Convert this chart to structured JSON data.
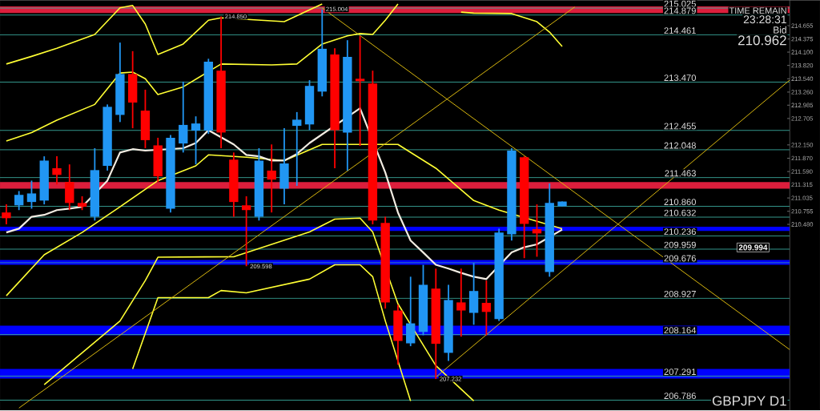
{
  "chart_data": {
    "type": "candlestick",
    "categories": [
      null,
      null,
      null,
      null,
      null,
      null,
      null,
      null,
      null,
      null,
      null,
      null,
      null,
      null,
      null,
      null,
      null,
      null,
      null,
      null,
      null,
      null,
      null,
      null,
      null,
      null,
      null,
      null,
      null,
      null,
      null,
      null,
      null,
      null,
      null,
      null,
      null,
      null,
      null,
      null,
      null,
      null,
      null,
      null,
      null,
      null,
      null,
      null,
      null,
      null,
      null,
      null,
      null,
      null,
      null,
      null,
      null,
      null,
      null,
      null,
      null,
      null,
      null
    ],
    "ohlc": [
      [
        210.73,
        210.9,
        210.48,
        210.61
      ],
      [
        210.88,
        211.18,
        210.78,
        211.1
      ],
      [
        210.95,
        211.4,
        210.81,
        211.13
      ],
      [
        210.98,
        211.91,
        210.9,
        211.82
      ],
      [
        211.66,
        211.91,
        211.32,
        211.52
      ],
      [
        211.37,
        211.74,
        210.78,
        210.93
      ],
      [
        210.93,
        211.07,
        210.78,
        210.85
      ],
      [
        210.64,
        212.08,
        210.56,
        211.62
      ],
      [
        211.71,
        213.0,
        211.61,
        212.95
      ],
      [
        212.78,
        214.3,
        212.63,
        213.64
      ],
      [
        213.64,
        214.12,
        212.5,
        213.04
      ],
      [
        212.87,
        213.31,
        212.08,
        212.25
      ],
      [
        212.14,
        212.3,
        211.37,
        211.49
      ],
      [
        210.81,
        212.36,
        210.73,
        212.3
      ],
      [
        212.18,
        213.48,
        211.99,
        212.57
      ],
      [
        212.45,
        212.75,
        211.74,
        212.6
      ],
      [
        212.45,
        213.96,
        212.38,
        213.9
      ],
      [
        213.71,
        214.85,
        212.08,
        212.41
      ],
      [
        211.84,
        211.99,
        210.64,
        210.95
      ],
      [
        210.88,
        211.07,
        209.6,
        210.78
      ],
      [
        210.64,
        212.08,
        210.56,
        211.82
      ],
      [
        211.61,
        212.16,
        210.73,
        211.42
      ],
      [
        211.23,
        212.5,
        210.9,
        211.76
      ],
      [
        212.55,
        212.84,
        211.29,
        212.68
      ],
      [
        212.58,
        213.51,
        212.46,
        213.39
      ],
      [
        213.27,
        215.0,
        213.17,
        214.17
      ],
      [
        214.05,
        214.18,
        211.66,
        212.46
      ],
      [
        212.41,
        214.35,
        211.61,
        214.0
      ],
      [
        213.54,
        214.44,
        212.13,
        213.49
      ],
      [
        213.44,
        213.71,
        210.48,
        210.56
      ],
      [
        210.51,
        210.64,
        208.71,
        208.84
      ],
      [
        208.67,
        208.79,
        207.53,
        208.03
      ],
      [
        207.98,
        209.38,
        207.92,
        208.4
      ],
      [
        208.22,
        209.63,
        208.15,
        209.21
      ],
      [
        209.13,
        209.55,
        207.23,
        207.97
      ],
      [
        207.78,
        209.21,
        207.61,
        208.89
      ],
      [
        208.84,
        209.55,
        208.12,
        208.67
      ],
      [
        208.62,
        209.67,
        208.37,
        209.08
      ],
      [
        208.83,
        209.3,
        208.15,
        208.64
      ],
      [
        208.49,
        210.39,
        208.45,
        210.31
      ],
      [
        210.27,
        212.08,
        210.14,
        212.03
      ],
      [
        211.89,
        211.91,
        209.77,
        210.49
      ],
      [
        210.38,
        210.9,
        209.8,
        210.29
      ],
      [
        209.48,
        211.34,
        209.38,
        210.93
      ],
      [
        210.86,
        210.96,
        210.86,
        210.96
      ],
      null,
      null,
      null,
      null,
      null,
      null,
      null,
      null,
      null,
      null,
      null,
      null,
      null,
      null,
      null,
      null,
      null,
      null
    ],
    "colors": [
      "#ff0000",
      "#2196f3",
      "#2196f3",
      "#2196f3",
      "#ff0000",
      "#ff0000",
      "#ff0000",
      "#2196f3",
      "#2196f3",
      "#2196f3",
      "#ff0000",
      "#ff0000",
      "#ff0000",
      "#2196f3",
      "#2196f3",
      "#2196f3",
      "#2196f3",
      "#ff0000",
      "#ff0000",
      "#ff0000",
      "#2196f3",
      "#ff0000",
      "#2196f3",
      "#2196f3",
      "#2196f3",
      "#2196f3",
      "#ff0000",
      "#2196f3",
      "#ff0000",
      "#ff0000",
      "#ff0000",
      "#ff0000",
      "#2196f3",
      "#2196f3",
      "#ff0000",
      "#2196f3",
      "#ff0000",
      "#2196f3",
      "#ff0000",
      "#2196f3",
      "#2196f3",
      "#ff0000",
      "#ff0000",
      "#2196f3",
      "#2196f3",
      null,
      null,
      null,
      null,
      null,
      null,
      null,
      null,
      null,
      null,
      null,
      null,
      null,
      null,
      null,
      null,
      null,
      null
    ],
    "ylim": [
      206.57,
      215.19
    ],
    "yticks": [
      214.655,
      214.375,
      {
        "value": 214.1,
        "label": "214.100"
      },
      {
        "value": 213.82,
        "label": "213.820"
      },
      {
        "value": 213.54,
        "label": "213.540"
      },
      {
        "value": 213.26,
        "label": "213.260"
      },
      212.985,
      212.705,
      {
        "value": 212.15,
        "label": "212.150"
      },
      {
        "value": 211.87,
        "label": "211.870"
      },
      {
        "value": 211.59,
        "label": "211.590"
      },
      211.315,
      211.035,
      210.755,
      {
        "value": 210.48,
        "label": "210.480"
      }
    ],
    "tick_labels": "y",
    "series": [
      {
        "type": "line",
        "color": "#ffff33",
        "values": [
          213.85,
          null,
          214.01,
          null,
          214.18,
          null,
          null,
          214.47,
          null,
          215.03,
          215.08,
          214.69,
          214.05,
          null,
          214.27,
          null,
          214.77,
          214.82,
          null,
          null,
          null,
          null,
          214.74,
          null,
          214.99,
          215.11,
          null,
          null,
          null,
          null,
          null,
          null,
          null,
          null,
          null,
          null,
          null,
          null,
          null,
          null,
          null,
          null,
          null,
          null,
          null,
          null,
          null,
          null,
          null,
          null,
          null,
          null,
          null,
          null,
          null,
          null,
          null,
          null,
          null,
          null,
          null,
          null,
          null
        ]
      },
      {
        "type": "line",
        "color": "#ffff33",
        "values": [
          212.23,
          null,
          212.41,
          null,
          212.67,
          null,
          null,
          213.0,
          null,
          213.66,
          213.68,
          213.54,
          213.21,
          null,
          213.37,
          null,
          null,
          213.85,
          null,
          null,
          null,
          213.83,
          null,
          213.85,
          null,
          214.27,
          null,
          214.44,
          214.49,
          214.47,
          214.77,
          215.11,
          null,
          null,
          null,
          null,
          null,
          null,
          null,
          null,
          null,
          null,
          null,
          null,
          null,
          null,
          null,
          null,
          null,
          null,
          null,
          null,
          null,
          null,
          null,
          null,
          null,
          null,
          null,
          null,
          null,
          null,
          null
        ]
      },
      {
        "type": "line",
        "color": "#ffff33",
        "values": [
          null,
          null,
          null,
          null,
          null,
          null,
          null,
          null,
          null,
          null,
          null,
          null,
          null,
          null,
          null,
          null,
          null,
          null,
          null,
          null,
          null,
          null,
          null,
          null,
          null,
          null,
          null,
          null,
          null,
          null,
          null,
          null,
          null,
          null,
          null,
          null,
          214.94,
          214.92,
          null,
          null,
          214.91,
          null,
          214.74,
          214.52,
          214.22,
          null,
          null,
          null,
          null,
          null,
          null,
          null,
          null,
          null,
          null,
          null,
          null,
          null,
          null,
          null,
          null,
          null,
          null
        ]
      },
      {
        "type": "line",
        "color": "#ffff33",
        "values": [
          208.98,
          null,
          null,
          209.84,
          null,
          null,
          210.31,
          null,
          null,
          210.85,
          null,
          null,
          211.4,
          null,
          null,
          211.71,
          211.94,
          null,
          null,
          211.89,
          null,
          null,
          211.82,
          null,
          null,
          212.16,
          null,
          null,
          null,
          null,
          null,
          212.16,
          null,
          null,
          211.66,
          null,
          null,
          210.98,
          null,
          210.78,
          null,
          null,
          null,
          null,
          210.39,
          null,
          null,
          null,
          null,
          null,
          null,
          null,
          null,
          null,
          null,
          null,
          null,
          null,
          null,
          null,
          null,
          null,
          null
        ]
      },
      {
        "type": "line",
        "color": "#ffff33",
        "values": [
          null,
          null,
          null,
          207.11,
          null,
          null,
          207.78,
          null,
          null,
          208.45,
          null,
          209.3,
          209.79,
          null,
          null,
          null,
          null,
          null,
          209.8,
          null,
          null,
          null,
          null,
          null,
          210.32,
          null,
          210.59,
          null,
          210.61,
          210.32,
          null,
          208.81,
          null,
          null,
          207.51,
          null,
          null,
          206.77,
          null,
          null,
          null,
          null,
          null,
          null,
          null,
          null,
          null,
          null,
          null,
          null,
          null,
          null,
          null,
          null,
          null,
          null,
          null,
          null,
          null,
          null,
          null,
          null,
          null
        ]
      },
      {
        "type": "line",
        "color": "#ffff33",
        "values": [
          null,
          null,
          null,
          null,
          null,
          null,
          null,
          null,
          null,
          null,
          207.44,
          null,
          208.94,
          null,
          null,
          null,
          208.94,
          209.09,
          null,
          209.04,
          null,
          null,
          null,
          null,
          209.33,
          null,
          209.63,
          null,
          209.63,
          209.38,
          208.45,
          null,
          206.77,
          null,
          null,
          null,
          null,
          null,
          null,
          null,
          null,
          null,
          null,
          null,
          null,
          null,
          null,
          null,
          null,
          null,
          null,
          null,
          null,
          null,
          null,
          null,
          null,
          null,
          null,
          null,
          null,
          null,
          null
        ]
      },
      {
        "type": "line",
        "color": "#f2ece2",
        "values": [
          210.31,
          210.39,
          210.64,
          210.68,
          210.78,
          210.81,
          210.85,
          null,
          211.4,
          211.99,
          212.06,
          212.03,
          null,
          null,
          212.08,
          212.19,
          212.46,
          null,
          212.16,
          211.94,
          211.91,
          211.82,
          211.82,
          211.96,
          212.19,
          null,
          null,
          null,
          212.92,
          null,
          211.57,
          210.73,
          210.14,
          209.89,
          209.63,
          209.55,
          209.46,
          209.38,
          209.33,
          null,
          209.89,
          210.0,
          210.06,
          null,
          210.37,
          null,
          null,
          null,
          null,
          null,
          null,
          null,
          null,
          null,
          null,
          null,
          null,
          null,
          null,
          null,
          null,
          null,
          null
        ]
      },
      {
        "type": "line",
        "color": "#d9b80f",
        "values": [
          null,
          null,
          null,
          null,
          null,
          null,
          null,
          null,
          null,
          null,
          null,
          null,
          null,
          null,
          null,
          null,
          null,
          null,
          null,
          null,
          null,
          null,
          null,
          null,
          null,
          215.03,
          null,
          null,
          null,
          null,
          null,
          null,
          null,
          null,
          null,
          null,
          null,
          null,
          null,
          null,
          null,
          null,
          null,
          null,
          null,
          null,
          null,
          null,
          null,
          null,
          null,
          null,
          null,
          null,
          null,
          null,
          null,
          null,
          null,
          null,
          null,
          null,
          207.85
        ]
      },
      {
        "type": "line",
        "color": "#d9b80f",
        "values": [
          null,
          null,
          null,
          null,
          null,
          null,
          null,
          null,
          null,
          null,
          null,
          null,
          null,
          null,
          null,
          null,
          null,
          null,
          null,
          null,
          null,
          null,
          null,
          null,
          null,
          null,
          null,
          null,
          null,
          null,
          null,
          null,
          null,
          null,
          207.27,
          null,
          null,
          null,
          null,
          null,
          null,
          null,
          null,
          null,
          null,
          null,
          null,
          null,
          null,
          null,
          null,
          null,
          null,
          null,
          null,
          null,
          null,
          null,
          null,
          null,
          null,
          null,
          213.51
        ]
      },
      {
        "type": "line",
        "color": "#d9b80f",
        "values": [
          null,
          206.62,
          null,
          null,
          null,
          null,
          null,
          null,
          null,
          null,
          null,
          null,
          null,
          null,
          null,
          null,
          null,
          null,
          null,
          null,
          null,
          null,
          null,
          null,
          null,
          null,
          null,
          null,
          null,
          null,
          null,
          null,
          null,
          null,
          null,
          null,
          null,
          null,
          null,
          null,
          null,
          null,
          null,
          null,
          null,
          215.05,
          null,
          null,
          null,
          null,
          null,
          null,
          null,
          null,
          null,
          null,
          null,
          null,
          null,
          null,
          null,
          null,
          null
        ]
      }
    ],
    "bands": [
      {
        "axis": "y",
        "from": 214.92,
        "to": 215.06,
        "color": "#dc1e3c"
      },
      {
        "axis": "y",
        "from": 211.23,
        "to": 211.37,
        "color": "#dc1e3c"
      },
      {
        "axis": "y",
        "from": 210.34,
        "to": 210.43,
        "color": "#0000ff"
      },
      {
        "axis": "y",
        "from": 209.63,
        "to": 209.73,
        "color": "#0000ff"
      },
      {
        "axis": "y",
        "from": 208.15,
        "to": 208.35,
        "color": "#0000ff"
      },
      {
        "axis": "y",
        "from": 207.24,
        "to": 207.44,
        "color": "#0000ff"
      }
    ],
    "ref_lines": [
      {
        "axis": "y",
        "value": 215.025,
        "label": "215.025",
        "color": "#3aa89c"
      },
      {
        "axis": "y",
        "value": 214.879,
        "label": "214.879",
        "color": "#3aa89c"
      },
      {
        "axis": "y",
        "value": 214.461,
        "label": "214.461",
        "color": "#3aa89c"
      },
      {
        "axis": "y",
        "value": 213.47,
        "label": "213.470",
        "color": "#3aa89c"
      },
      {
        "axis": "y",
        "value": 212.455,
        "label": "212.455",
        "color": "#3aa89c"
      },
      {
        "axis": "y",
        "value": 212.048,
        "label": "212.048",
        "color": "#3aa89c"
      },
      {
        "axis": "y",
        "value": 211.463,
        "label": "211.463",
        "color": "#3aa89c"
      },
      {
        "axis": "y",
        "value": 210.86,
        "label": "210.860",
        "color": "#3aa89c"
      },
      {
        "axis": "y",
        "value": 210.632,
        "label": "210.632",
        "color": "#3aa89c"
      },
      {
        "axis": "y",
        "value": 210.236,
        "label": "210.236",
        "color": "#3aa89c"
      },
      {
        "axis": "y",
        "value": 209.959,
        "label": "209.959",
        "color": "#3aa89c"
      },
      {
        "axis": "y",
        "value": 209.676,
        "label": "209.676",
        "color": "#3aa89c"
      },
      {
        "axis": "y",
        "value": 208.927,
        "label": "208.927",
        "color": "#3aa89c"
      },
      {
        "axis": "y",
        "value": 208.164,
        "label": "208.164",
        "color": "#3aa89c"
      },
      {
        "axis": "y",
        "value": 207.291,
        "label": "207.291",
        "color": "#3aa89c"
      },
      {
        "axis": "y",
        "value": 206.786,
        "label": "206.786",
        "color": "#3aa89c"
      }
    ],
    "annotations": [
      "TIME REMAIN",
      "23:28:31",
      "Bid",
      "210.962",
      "GBPJPY D1",
      {
        "text": "214.850",
        "y": 214.85
      },
      {
        "text": "215.004",
        "y": 215.004
      },
      {
        "text": "209.598",
        "y": 209.598
      },
      {
        "text": "207.232",
        "y": 207.232
      },
      {
        "text": "209.994",
        "y": 209.994
      }
    ]
  }
}
